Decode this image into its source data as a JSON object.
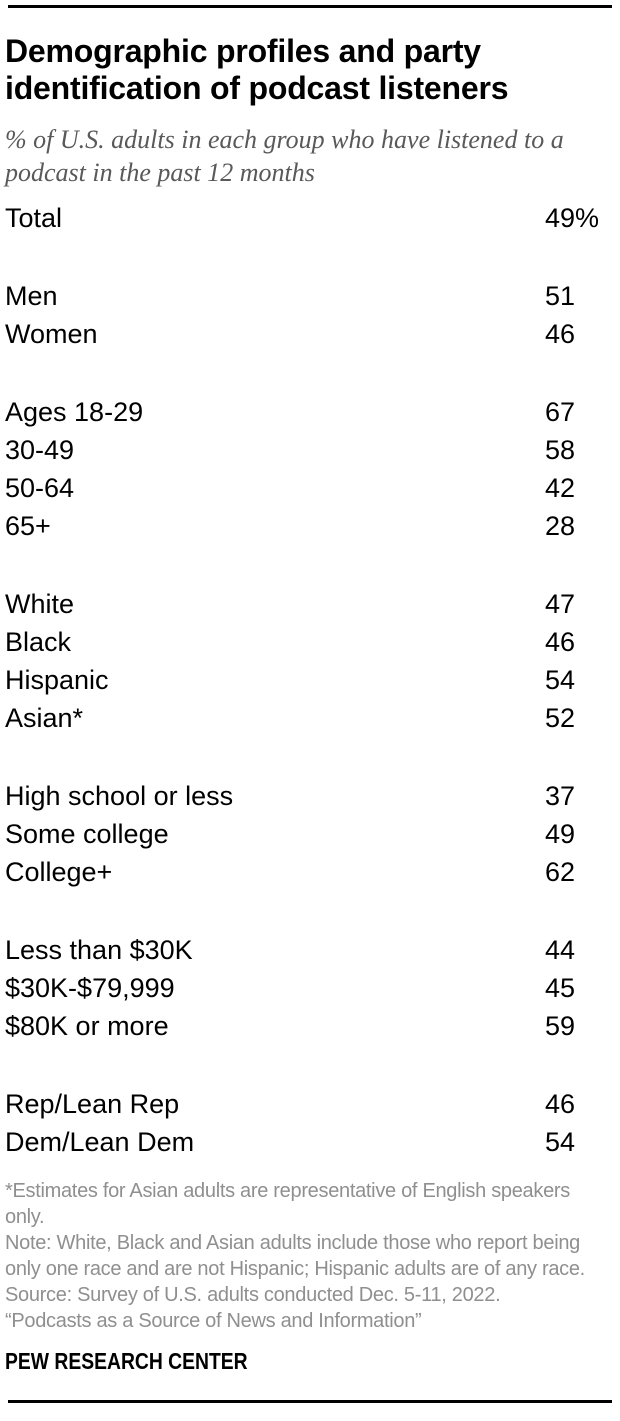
{
  "colors": {
    "text": "#000000",
    "subtitle": "#595959",
    "notes": "#8f8f8f",
    "rule": "#000000",
    "background": "#ffffff"
  },
  "header": {
    "title_line1": "Demographic profiles and party",
    "title_line2": "identification of podcast listeners",
    "subtitle_line1": "% of U.S. adults in each group who have listened to a",
    "subtitle_line2": "podcast in the past 12 months"
  },
  "chart_data": {
    "type": "table",
    "title": "Demographic profiles and party identification of podcast listeners",
    "subtitle": "% of U.S. adults in each group who have listened to a podcast in the past 12 months",
    "value_unit": "%",
    "value_range": [
      0,
      100
    ],
    "rows": [
      {
        "group": "total",
        "label": "Total",
        "value": 49,
        "suffix": "%"
      },
      {
        "group": "gender",
        "label": "Men",
        "value": 51,
        "suffix": ""
      },
      {
        "group": "gender",
        "label": "Women",
        "value": 46,
        "suffix": ""
      },
      {
        "group": "age",
        "label": "Ages 18-29",
        "value": 67,
        "suffix": ""
      },
      {
        "group": "age",
        "label": "30-49",
        "value": 58,
        "suffix": ""
      },
      {
        "group": "age",
        "label": "50-64",
        "value": 42,
        "suffix": ""
      },
      {
        "group": "age",
        "label": "65+",
        "value": 28,
        "suffix": ""
      },
      {
        "group": "race",
        "label": "White",
        "value": 47,
        "suffix": ""
      },
      {
        "group": "race",
        "label": "Black",
        "value": 46,
        "suffix": ""
      },
      {
        "group": "race",
        "label": "Hispanic",
        "value": 54,
        "suffix": ""
      },
      {
        "group": "race",
        "label": "Asian*",
        "value": 52,
        "suffix": ""
      },
      {
        "group": "education",
        "label": "High school or less",
        "value": 37,
        "suffix": ""
      },
      {
        "group": "education",
        "label": "Some college",
        "value": 49,
        "suffix": ""
      },
      {
        "group": "education",
        "label": "College+",
        "value": 62,
        "suffix": ""
      },
      {
        "group": "income",
        "label": "Less than $30K",
        "value": 44,
        "suffix": ""
      },
      {
        "group": "income",
        "label": "$30K-$79,999",
        "value": 45,
        "suffix": ""
      },
      {
        "group": "income",
        "label": "$80K or more",
        "value": 59,
        "suffix": ""
      },
      {
        "group": "party",
        "label": "Rep/Lean Rep",
        "value": 46,
        "suffix": ""
      },
      {
        "group": "party",
        "label": "Dem/Lean Dem",
        "value": 54,
        "suffix": ""
      }
    ]
  },
  "footer": {
    "notes": [
      "*Estimates for Asian adults are representative of English speakers",
      "only.",
      "Note: White, Black and Asian adults include those who report being",
      "only one race and are not Hispanic; Hispanic adults are of any race.",
      "Source: Survey of U.S. adults conducted Dec. 5-11, 2022.",
      "“Podcasts as a Source of News and Information”"
    ],
    "wordmark": "PEW RESEARCH CENTER"
  }
}
